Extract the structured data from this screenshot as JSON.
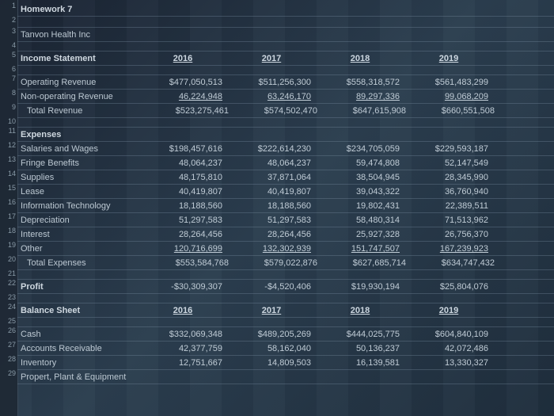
{
  "title": "Homework 7",
  "company": "Tanvon Health Inc",
  "section1": "Income Statement",
  "years": [
    "2016",
    "2017",
    "2018",
    "2019"
  ],
  "rows": [
    {
      "n": 7,
      "label": "Operating Revenue",
      "v": [
        "$477,050,513",
        "$511,256,300",
        "$558,318,572",
        "$561,483,299"
      ]
    },
    {
      "n": 8,
      "label": "Non-operating Revenue",
      "v": [
        "46,224,948",
        "63,246,170",
        "89,297,336",
        "99,068,209"
      ],
      "u": true
    },
    {
      "n": 9,
      "label": "Total Revenue",
      "indent": true,
      "v": [
        "$523,275,461",
        "$574,502,470",
        "$647,615,908",
        "$660,551,508"
      ]
    }
  ],
  "expenses_header": "Expenses",
  "expenses": [
    {
      "n": 12,
      "label": "Salaries and Wages",
      "v": [
        "$198,457,616",
        "$222,614,230",
        "$234,705,059",
        "$229,593,187"
      ]
    },
    {
      "n": 13,
      "label": "Fringe Benefits",
      "v": [
        "48,064,237",
        "48,064,237",
        "59,474,808",
        "52,147,549"
      ]
    },
    {
      "n": 14,
      "label": "Supplies",
      "v": [
        "48,175,810",
        "37,871,064",
        "38,504,945",
        "28,345,990"
      ]
    },
    {
      "n": 15,
      "label": "Lease",
      "v": [
        "40,419,807",
        "40,419,807",
        "39,043,322",
        "36,760,940"
      ]
    },
    {
      "n": 16,
      "label": "Information Technology",
      "v": [
        "18,188,560",
        "18,188,560",
        "19,802,431",
        "22,389,511"
      ]
    },
    {
      "n": 17,
      "label": "Depreciation",
      "v": [
        "51,297,583",
        "51,297,583",
        "58,480,314",
        "71,513,962"
      ]
    },
    {
      "n": 18,
      "label": "Interest",
      "v": [
        "28,264,456",
        "28,264,456",
        "25,927,328",
        "26,756,370"
      ]
    },
    {
      "n": 19,
      "label": "Other",
      "v": [
        "120,716,699",
        "132,302,939",
        "151,747,507",
        "167,239,923"
      ],
      "u": true
    },
    {
      "n": 20,
      "label": "Total Expenses",
      "indent": true,
      "v": [
        "$553,584,768",
        "$579,022,876",
        "$627,685,714",
        "$634,747,432"
      ]
    }
  ],
  "profit": {
    "n": 22,
    "label": "Profit",
    "v": [
      "-$30,309,307",
      "-$4,520,406",
      "$19,930,194",
      "$25,804,076"
    ]
  },
  "section2": "Balance Sheet",
  "balance": [
    {
      "n": 26,
      "label": "Cash",
      "v": [
        "$332,069,348",
        "$489,205,269",
        "$444,025,775",
        "$604,840,109"
      ]
    },
    {
      "n": 27,
      "label": "Accounts Receivable",
      "v": [
        "42,377,759",
        "58,162,040",
        "50,136,237",
        "42,072,486"
      ]
    },
    {
      "n": 28,
      "label": "Inventory",
      "v": [
        "12,751,667",
        "14,809,503",
        "16,139,581",
        "13,330,327"
      ]
    },
    {
      "n": 29,
      "label": "Propert, Plant & Equipment",
      "v": [
        "",
        "",
        "",
        ""
      ]
    }
  ]
}
